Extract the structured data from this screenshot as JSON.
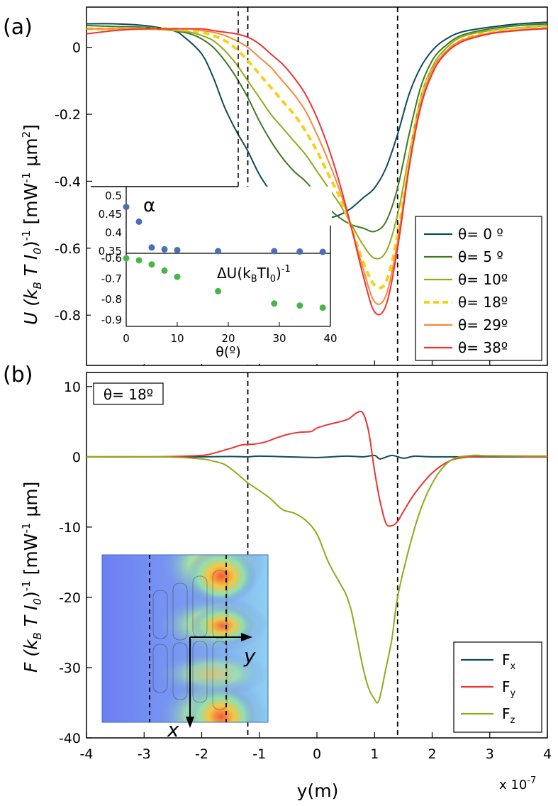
{
  "chart_data": [
    {
      "panel_label": "(a)",
      "type": "line",
      "xlabel": "y(m)",
      "ylabel": "U (k",
      "ylabel_sub": "B",
      "ylabel_mid": " T I",
      "ylabel_sub2": "0",
      "ylabel_end": ")",
      "ylabel_sup": "-1",
      "ylabel_unit": " [mW",
      "ylabel_unit_sup": "-1",
      "ylabel_unit2": " μm",
      "ylabel_unit_sup2": "2",
      "ylabel_close": "]",
      "xlim": [
        -4e-07,
        4e-07
      ],
      "ylim": [
        -0.95,
        0.12
      ],
      "yticks": [
        "0",
        "-0.2",
        "-0.4",
        "-0.6",
        "-0.8"
      ],
      "ytick_values": [
        0,
        -0.2,
        -0.4,
        -0.6,
        -0.8
      ],
      "vlines_dashed": [
        -1.2e-07,
        1.4e-07
      ],
      "series": [
        {
          "name": "θ= 0 º",
          "color": "#0d4a5b",
          "dash": false,
          "x": [
            -4,
            -3.5,
            -3,
            -2.5,
            -2.3,
            -2,
            -1.8,
            -1.6,
            -1.4,
            -1.2,
            -1.0,
            -0.8,
            -0.6,
            -0.4,
            -0.2,
            0,
            0.2,
            0.4,
            0.6,
            0.8,
            1.0,
            1.2,
            1.4,
            1.6,
            1.8,
            2.0,
            2.2,
            2.5,
            3,
            3.5,
            4
          ],
          "y": [
            0.07,
            0.07,
            0.065,
            0.05,
            0.03,
            -0.02,
            -0.09,
            -0.18,
            -0.25,
            -0.31,
            -0.38,
            -0.43,
            -0.46,
            -0.48,
            -0.5,
            -0.51,
            -0.51,
            -0.5,
            -0.48,
            -0.45,
            -0.42,
            -0.36,
            -0.26,
            -0.14,
            -0.06,
            -0.01,
            0.02,
            0.045,
            0.06,
            0.07,
            0.075
          ]
        },
        {
          "name": "θ= 5 º",
          "color": "#3c7a1e",
          "dash": false,
          "x": [
            -4,
            -3.5,
            -3,
            -2.5,
            -2.2,
            -2,
            -1.8,
            -1.6,
            -1.4,
            -1.2,
            -1.0,
            -0.8,
            -0.6,
            -0.4,
            -0.2,
            0,
            0.2,
            0.4,
            0.6,
            0.8,
            1.0,
            1.2,
            1.4,
            1.6,
            1.8,
            2.0,
            2.2,
            2.5,
            3,
            3.5,
            4
          ],
          "y": [
            0.065,
            0.062,
            0.06,
            0.05,
            0.04,
            0.025,
            0.0,
            -0.04,
            -0.09,
            -0.15,
            -0.22,
            -0.28,
            -0.33,
            -0.37,
            -0.4,
            -0.44,
            -0.48,
            -0.51,
            -0.53,
            -0.54,
            -0.55,
            -0.52,
            -0.42,
            -0.26,
            -0.12,
            -0.04,
            0.0,
            0.035,
            0.055,
            0.065,
            0.07
          ]
        },
        {
          "name": "θ= 10º",
          "color": "#8fab1a",
          "dash": false,
          "x": [
            -4,
            -3.5,
            -3,
            -2.5,
            -2.2,
            -2,
            -1.8,
            -1.6,
            -1.4,
            -1.2,
            -1.0,
            -0.8,
            -0.6,
            -0.4,
            -0.2,
            0,
            0.2,
            0.4,
            0.6,
            0.8,
            1.0,
            1.2,
            1.4,
            1.6,
            1.8,
            2.0,
            2.2,
            2.5,
            3,
            3.5,
            4
          ],
          "y": [
            0.055,
            0.055,
            0.055,
            0.05,
            0.045,
            0.035,
            0.02,
            -0.01,
            -0.05,
            -0.1,
            -0.15,
            -0.2,
            -0.24,
            -0.28,
            -0.32,
            -0.37,
            -0.42,
            -0.47,
            -0.53,
            -0.59,
            -0.63,
            -0.61,
            -0.5,
            -0.32,
            -0.15,
            -0.06,
            -0.01,
            0.03,
            0.05,
            0.058,
            0.065
          ]
        },
        {
          "name": "θ= 18º",
          "color": "#f7d117",
          "dash": true,
          "x": [
            -4,
            -3.5,
            -3,
            -2.5,
            -2.2,
            -2,
            -1.8,
            -1.6,
            -1.4,
            -1.2,
            -1.0,
            -0.8,
            -0.6,
            -0.4,
            -0.2,
            0,
            0.2,
            0.4,
            0.6,
            0.8,
            1.0,
            1.2,
            1.4,
            1.6,
            1.8,
            2.0,
            2.2,
            2.5,
            3,
            3.5,
            4
          ],
          "y": [
            0.055,
            0.055,
            0.055,
            0.055,
            0.05,
            0.045,
            0.035,
            0.02,
            -0.005,
            -0.04,
            -0.08,
            -0.12,
            -0.16,
            -0.2,
            -0.25,
            -0.31,
            -0.38,
            -0.45,
            -0.54,
            -0.64,
            -0.71,
            -0.7,
            -0.56,
            -0.34,
            -0.16,
            -0.07,
            -0.02,
            0.02,
            0.045,
            0.055,
            0.06
          ]
        },
        {
          "name": "θ= 29º",
          "color": "#f5893a",
          "dash": false,
          "x": [
            -4,
            -3.5,
            -3,
            -2.5,
            -2.2,
            -2,
            -1.8,
            -1.6,
            -1.4,
            -1.2,
            -1.0,
            -0.8,
            -0.6,
            -0.4,
            -0.2,
            0,
            0.2,
            0.4,
            0.6,
            0.8,
            1.0,
            1.2,
            1.4,
            1.6,
            1.8,
            2.0,
            2.2,
            2.5,
            3,
            3.5,
            4
          ],
          "y": [
            0.055,
            0.055,
            0.055,
            0.055,
            0.055,
            0.05,
            0.045,
            0.035,
            0.02,
            0.0,
            -0.03,
            -0.06,
            -0.1,
            -0.14,
            -0.19,
            -0.26,
            -0.34,
            -0.43,
            -0.54,
            -0.66,
            -0.76,
            -0.74,
            -0.58,
            -0.35,
            -0.17,
            -0.07,
            -0.02,
            0.02,
            0.042,
            0.052,
            0.058
          ]
        },
        {
          "name": "θ= 38º",
          "color": "#ee3333",
          "dash": false,
          "x": [
            -4,
            -3.5,
            -3,
            -2.5,
            -2.2,
            -2,
            -1.8,
            -1.6,
            -1.4,
            -1.2,
            -1.0,
            -0.8,
            -0.6,
            -0.4,
            -0.2,
            0,
            0.2,
            0.4,
            0.6,
            0.8,
            1.0,
            1.2,
            1.4,
            1.6,
            1.8,
            2.0,
            2.2,
            2.5,
            3,
            3.5,
            4
          ],
          "y": [
            0.04,
            0.05,
            0.055,
            0.055,
            0.055,
            0.055,
            0.05,
            0.045,
            0.04,
            0.03,
            0.01,
            -0.02,
            -0.05,
            -0.09,
            -0.14,
            -0.21,
            -0.3,
            -0.41,
            -0.54,
            -0.68,
            -0.79,
            -0.77,
            -0.6,
            -0.36,
            -0.18,
            -0.08,
            -0.025,
            0.015,
            0.04,
            0.05,
            0.056
          ]
        }
      ],
      "inset": {
        "xlabel": "θ(º)",
        "xticks": [
          "0",
          "10",
          "20",
          "30",
          "40"
        ],
        "xtick_values": [
          0,
          10,
          20,
          30,
          40
        ],
        "alpha_label": "α",
        "alpha_yticks": [
          "0.5",
          "0.45",
          "0.4",
          "0.35"
        ],
        "alpha_ytick_values": [
          0.5,
          0.45,
          0.4,
          0.35
        ],
        "du_label": "ΔU(k",
        "du_label_sub": "B",
        "du_label_mid": "TI",
        "du_label_sub2": "0",
        "du_label_end": ")",
        "du_label_sup": "-1",
        "du_yticks": [
          "-0.6",
          "-0.7",
          "-0.8",
          "-0.9"
        ],
        "du_ytick_values": [
          -0.6,
          -0.7,
          -0.8,
          -0.9
        ],
        "theta": [
          0,
          2.5,
          5,
          7.5,
          10,
          18,
          29,
          34,
          38.5
        ],
        "alpha": [
          0.47,
          0.43,
          0.36,
          0.355,
          0.353,
          0.35,
          0.35,
          0.349,
          0.348
        ],
        "delta_u": [
          -0.6,
          -0.61,
          -0.63,
          -0.66,
          -0.69,
          -0.76,
          -0.82,
          -0.83,
          -0.84
        ],
        "alpha_color": "#4a6fb5",
        "du_color": "#47b547"
      }
    },
    {
      "panel_label": "(b)",
      "type": "line",
      "xlabel": "y(m)",
      "x_multiplier": "x 10",
      "x_multiplier_exp": "-7",
      "xlim": [
        -4e-07,
        4e-07
      ],
      "ylim": [
        -40,
        12
      ],
      "xticks": [
        "-4",
        "-3",
        "-2",
        "-1",
        "0",
        "1",
        "2",
        "3",
        "4"
      ],
      "xtick_values": [
        -4,
        -3,
        -2,
        -1,
        0,
        1,
        2,
        3,
        4
      ],
      "yticks": [
        "10",
        "0",
        "-10",
        "-20",
        "-30",
        "-40"
      ],
      "ytick_values": [
        10,
        0,
        -10,
        -20,
        -30,
        -40
      ],
      "ylabel": "F (k",
      "ylabel_sub": "B",
      "ylabel_mid": " T I",
      "ylabel_sub2": "0",
      "ylabel_end": ")",
      "ylabel_sup": "-1",
      "ylabel_unit": " [mW",
      "ylabel_unit_sup": "-1",
      "ylabel_unit2": " μm]",
      "theta_box": "θ= 18º",
      "vlines_dashed": [
        -1.2e-07,
        1.4e-07
      ],
      "series": [
        {
          "name": "F",
          "sub": "x",
          "color": "#0d4a5b",
          "x": [
            -4,
            -3,
            -2,
            -1.5,
            -1.2,
            -1,
            -0.5,
            0,
            0.5,
            0.8,
            1.0,
            1.1,
            1.3,
            1.5,
            1.7,
            2,
            3,
            4
          ],
          "y": [
            0,
            0,
            0,
            0.05,
            0,
            0.1,
            0,
            -0.1,
            0.1,
            0,
            0.2,
            -0.3,
            0.2,
            -0.2,
            0.1,
            0,
            0,
            0
          ]
        },
        {
          "name": "F",
          "sub": "y",
          "color": "#ee3333",
          "x": [
            -4,
            -3,
            -2.5,
            -2,
            -1.8,
            -1.5,
            -1.3,
            -1.1,
            -0.9,
            -0.7,
            -0.5,
            -0.3,
            -0.1,
            0,
            0.2,
            0.4,
            0.55,
            0.7,
            0.8,
            0.9,
            1.0,
            1.1,
            1.2,
            1.3,
            1.4,
            1.5,
            1.7,
            2.0,
            2.3,
            2.6,
            3,
            4
          ],
          "y": [
            0,
            0,
            0.05,
            0.2,
            0.5,
            1.2,
            1.7,
            1.8,
            2.1,
            2.7,
            3.2,
            3.5,
            3.6,
            4.1,
            4.6,
            5.0,
            5.4,
            6.3,
            6.2,
            3.5,
            -2,
            -6.5,
            -9.5,
            -9.8,
            -9.2,
            -7.8,
            -5.2,
            -2.3,
            -0.6,
            -0.05,
            0.1,
            0
          ]
        },
        {
          "name": "F",
          "sub": "z",
          "color": "#8fab1a",
          "x": [
            -4,
            -3,
            -2.5,
            -2,
            -1.8,
            -1.6,
            -1.4,
            -1.2,
            -1.0,
            -0.8,
            -0.6,
            -0.4,
            -0.2,
            0,
            0.2,
            0.4,
            0.5,
            0.6,
            0.7,
            0.8,
            0.9,
            1.0,
            1.05,
            1.1,
            1.2,
            1.3,
            1.4,
            1.6,
            1.8,
            2.0,
            2.2,
            2.4,
            2.7,
            3,
            4
          ],
          "y": [
            0,
            0,
            -0.05,
            -0.3,
            -0.6,
            -1.1,
            -2.3,
            -3.7,
            -4.8,
            -6,
            -7.5,
            -8,
            -9,
            -11,
            -15,
            -18,
            -19.5,
            -22,
            -26,
            -30,
            -33,
            -34.5,
            -35,
            -34,
            -30,
            -26,
            -20,
            -13,
            -7.5,
            -3.8,
            -1.4,
            -0.2,
            0.2,
            0.15,
            0.1
          ]
        }
      ]
    }
  ]
}
